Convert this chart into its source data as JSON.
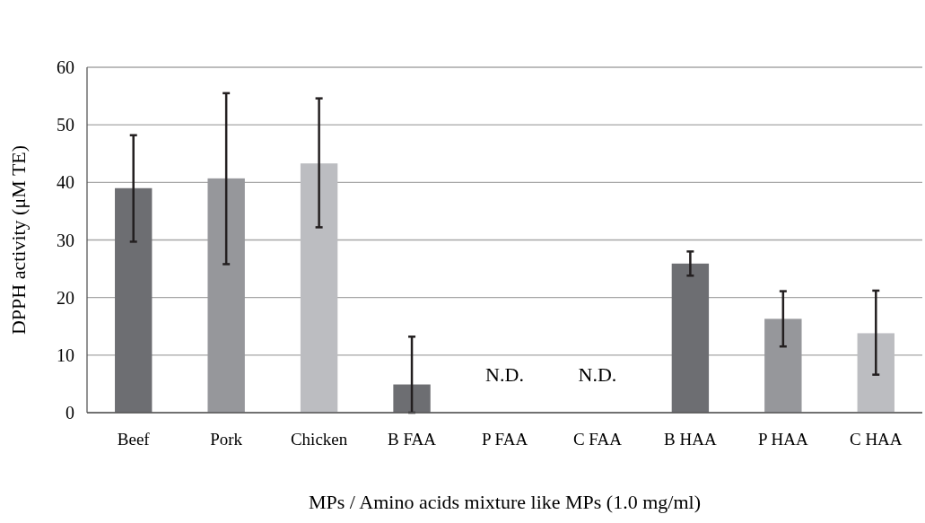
{
  "chart_data": {
    "type": "bar",
    "xlabel": "MPs / Amino acids mixture like MPs (1.0 mg/ml)",
    "ylabel": "DPPH activity (μM TE)",
    "categories": [
      "Beef",
      "Pork",
      "Chicken",
      "B FAA",
      "P FAA",
      "C FAA",
      "B HAA",
      "P HAA",
      "C HAA"
    ],
    "values": [
      39,
      40.7,
      43.3,
      4.9,
      null,
      null,
      25.9,
      16.3,
      13.8
    ],
    "colors": [
      "#6d6e72",
      "#96979b",
      "#bcbdc1",
      "#6d6e72",
      null,
      null,
      "#6d6e72",
      "#96979b",
      "#bcbdc1"
    ],
    "errors": [
      [
        29.7,
        48.2
      ],
      [
        25.8,
        55.5
      ],
      [
        32.2,
        54.6
      ],
      [
        0,
        13.2
      ],
      null,
      null,
      [
        23.8,
        28
      ],
      [
        11.5,
        21.1
      ],
      [
        6.6,
        21.2
      ]
    ],
    "annotations": [
      "N.D.",
      "N.D."
    ],
    "ylim": [
      0,
      60
    ],
    "yticks": [
      0,
      10,
      20,
      30,
      40,
      50,
      60
    ],
    "grid": "y"
  }
}
